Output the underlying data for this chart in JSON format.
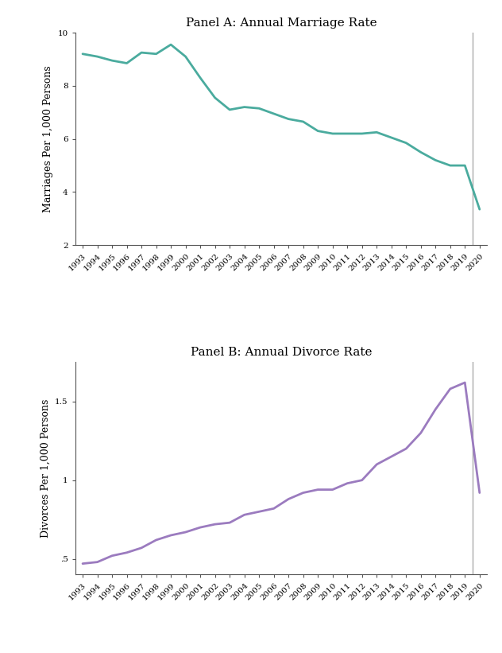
{
  "marriage_years": [
    1993,
    1994,
    1995,
    1996,
    1997,
    1998,
    1999,
    2000,
    2001,
    2002,
    2003,
    2004,
    2005,
    2006,
    2007,
    2008,
    2009,
    2010,
    2011,
    2012,
    2013,
    2014,
    2015,
    2016,
    2017,
    2018,
    2019,
    2020
  ],
  "marriage_values": [
    9.2,
    9.1,
    8.95,
    8.85,
    9.25,
    9.2,
    9.55,
    9.1,
    8.3,
    7.55,
    7.1,
    7.2,
    7.15,
    6.95,
    6.75,
    6.65,
    6.3,
    6.2,
    6.2,
    6.2,
    6.25,
    6.05,
    5.85,
    5.5,
    5.2,
    5.0,
    5.0,
    3.35
  ],
  "divorce_years": [
    1993,
    1994,
    1995,
    1996,
    1997,
    1998,
    1999,
    2000,
    2001,
    2002,
    2003,
    2004,
    2005,
    2006,
    2007,
    2008,
    2009,
    2010,
    2011,
    2012,
    2013,
    2014,
    2015,
    2016,
    2017,
    2018,
    2019,
    2020
  ],
  "divorce_values": [
    0.47,
    0.48,
    0.52,
    0.54,
    0.57,
    0.62,
    0.65,
    0.67,
    0.7,
    0.72,
    0.73,
    0.78,
    0.8,
    0.82,
    0.88,
    0.92,
    0.94,
    0.94,
    0.98,
    1.0,
    1.1,
    1.15,
    1.2,
    1.3,
    1.45,
    1.58,
    1.62,
    0.92
  ],
  "marriage_color": "#4aab9e",
  "divorce_color": "#9b7bbf",
  "vline_color": "#aaaaaa",
  "vline_year": 2019.5,
  "panel_a_title": "Panel A: Annual Marriage Rate",
  "panel_b_title": "Panel B: Annual Divorce Rate",
  "panel_a_ylabel": "Marriages Per 1,000 Persons",
  "panel_b_ylabel": "Divorces Per 1,000 Persons",
  "marriage_ylim": [
    2,
    10
  ],
  "divorce_ylim": [
    0.4,
    1.75
  ],
  "marriage_yticks": [
    2,
    4,
    6,
    8,
    10
  ],
  "divorce_yticks": [
    0.5,
    1.0,
    1.5
  ],
  "line_width": 2.0,
  "background_color": "#ffffff",
  "title_fontsize": 11,
  "label_fontsize": 9,
  "tick_fontsize": 7.5
}
